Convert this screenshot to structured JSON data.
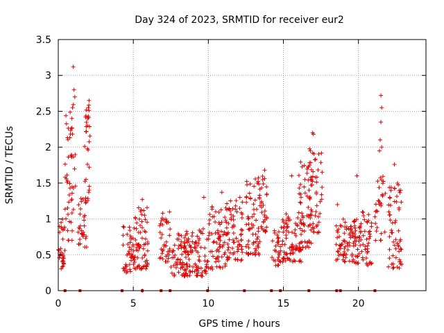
{
  "chart_data": {
    "type": "scatter",
    "title": "Day 324 of 2023, SRMTID for receiver eur2",
    "xlabel": "GPS time / hours",
    "ylabel": "SRMTID / TECUs",
    "xlim": [
      0,
      24.5
    ],
    "ylim": [
      0,
      3.5
    ],
    "grid": true,
    "x_ticks": [
      0,
      5,
      10,
      15,
      20
    ],
    "x_tick_labels": [
      "0",
      "5",
      "10",
      "15",
      "20"
    ],
    "y_ticks": [
      0,
      0.5,
      1,
      1.5,
      2,
      2.5,
      3,
      3.5
    ],
    "y_tick_labels": [
      "0",
      "0.5",
      "1",
      "1.5",
      "2",
      "2.5",
      "3",
      "3.5"
    ],
    "marker": "+",
    "color": "#e00000",
    "series": [
      {
        "name": "SRMTID",
        "clusters": [
          {
            "x_range": [
              0.0,
              0.45
            ],
            "y_range": [
              0.3,
              1.0
            ],
            "n": 30
          },
          {
            "x_range": [
              0.45,
              1.15
            ],
            "y_range": [
              0.7,
              2.6
            ],
            "n": 50
          },
          {
            "x_range": [
              1.3,
              1.9
            ],
            "y_range": [
              0.6,
              1.3
            ],
            "n": 30
          },
          {
            "x_range": [
              1.75,
              2.15
            ],
            "y_range": [
              1.2,
              2.6
            ],
            "n": 30
          },
          {
            "x_range": [
              4.3,
              5.0
            ],
            "y_range": [
              0.25,
              0.9
            ],
            "n": 40
          },
          {
            "x_range": [
              5.0,
              6.0
            ],
            "y_range": [
              0.3,
              1.2
            ],
            "n": 70
          },
          {
            "x_range": [
              6.7,
              7.5
            ],
            "y_range": [
              0.4,
              1.1
            ],
            "n": 40
          },
          {
            "x_range": [
              7.5,
              8.5
            ],
            "y_range": [
              0.2,
              0.8
            ],
            "n": 60
          },
          {
            "x_range": [
              8.5,
              10.0
            ],
            "y_range": [
              0.2,
              0.9
            ],
            "n": 90
          },
          {
            "x_range": [
              10.0,
              11.2
            ],
            "y_range": [
              0.3,
              1.2
            ],
            "n": 70
          },
          {
            "x_range": [
              11.2,
              12.3
            ],
            "y_range": [
              0.4,
              1.3
            ],
            "n": 70
          },
          {
            "x_range": [
              12.5,
              13.5
            ],
            "y_range": [
              0.5,
              1.6
            ],
            "n": 70
          },
          {
            "x_range": [
              13.5,
              13.9
            ],
            "y_range": [
              0.8,
              1.6
            ],
            "n": 30
          },
          {
            "x_range": [
              14.2,
              14.8
            ],
            "y_range": [
              0.35,
              0.9
            ],
            "n": 30
          },
          {
            "x_range": [
              14.8,
              16.2
            ],
            "y_range": [
              0.4,
              1.1
            ],
            "n": 80
          },
          {
            "x_range": [
              16.0,
              16.9
            ],
            "y_range": [
              0.6,
              1.8
            ],
            "n": 60
          },
          {
            "x_range": [
              16.7,
              17.6
            ],
            "y_range": [
              0.8,
              2.0
            ],
            "n": 50
          },
          {
            "x_range": [
              18.5,
              19.6
            ],
            "y_range": [
              0.4,
              1.0
            ],
            "n": 60
          },
          {
            "x_range": [
              19.6,
              20.9
            ],
            "y_range": [
              0.35,
              1.1
            ],
            "n": 80
          },
          {
            "x_range": [
              21.1,
              21.8
            ],
            "y_range": [
              0.7,
              1.6
            ],
            "n": 30
          },
          {
            "x_range": [
              22.0,
              22.9
            ],
            "y_range": [
              0.3,
              1.5
            ],
            "n": 60
          }
        ],
        "outliers": [
          {
            "x": 1.0,
            "y": 3.12
          },
          {
            "x": 1.05,
            "y": 2.8
          },
          {
            "x": 1.1,
            "y": 2.7
          },
          {
            "x": 0.95,
            "y": 2.55
          },
          {
            "x": 2.05,
            "y": 2.65
          },
          {
            "x": 2.0,
            "y": 2.55
          },
          {
            "x": 1.95,
            "y": 2.3
          },
          {
            "x": 16.95,
            "y": 2.2
          },
          {
            "x": 17.0,
            "y": 2.18
          },
          {
            "x": 21.5,
            "y": 2.72
          },
          {
            "x": 21.55,
            "y": 2.55
          },
          {
            "x": 21.5,
            "y": 2.35
          },
          {
            "x": 21.45,
            "y": 2.1
          },
          {
            "x": 21.55,
            "y": 2.0
          },
          {
            "x": 21.4,
            "y": 1.95
          },
          {
            "x": 22.4,
            "y": 1.76
          },
          {
            "x": 13.75,
            "y": 1.68
          },
          {
            "x": 19.9,
            "y": 1.6
          },
          {
            "x": 16.8,
            "y": 1.95
          },
          {
            "x": 15.55,
            "y": 1.6
          },
          {
            "x": 5.6,
            "y": 1.27
          },
          {
            "x": 10.9,
            "y": 1.37
          },
          {
            "x": 9.7,
            "y": 1.3
          },
          {
            "x": 5.6,
            "y": 0.0
          },
          {
            "x": 0.0,
            "y": 0.57
          },
          {
            "x": 12.1,
            "y": 1.3
          },
          {
            "x": 18.6,
            "y": 1.2
          }
        ]
      }
    ],
    "zero_markers_x": [
      0.45,
      1.45,
      4.25,
      5.6,
      6.85,
      7.45,
      9.95,
      12.4,
      14.2,
      14.8,
      16.7,
      18.55,
      18.8,
      21.1
    ]
  }
}
